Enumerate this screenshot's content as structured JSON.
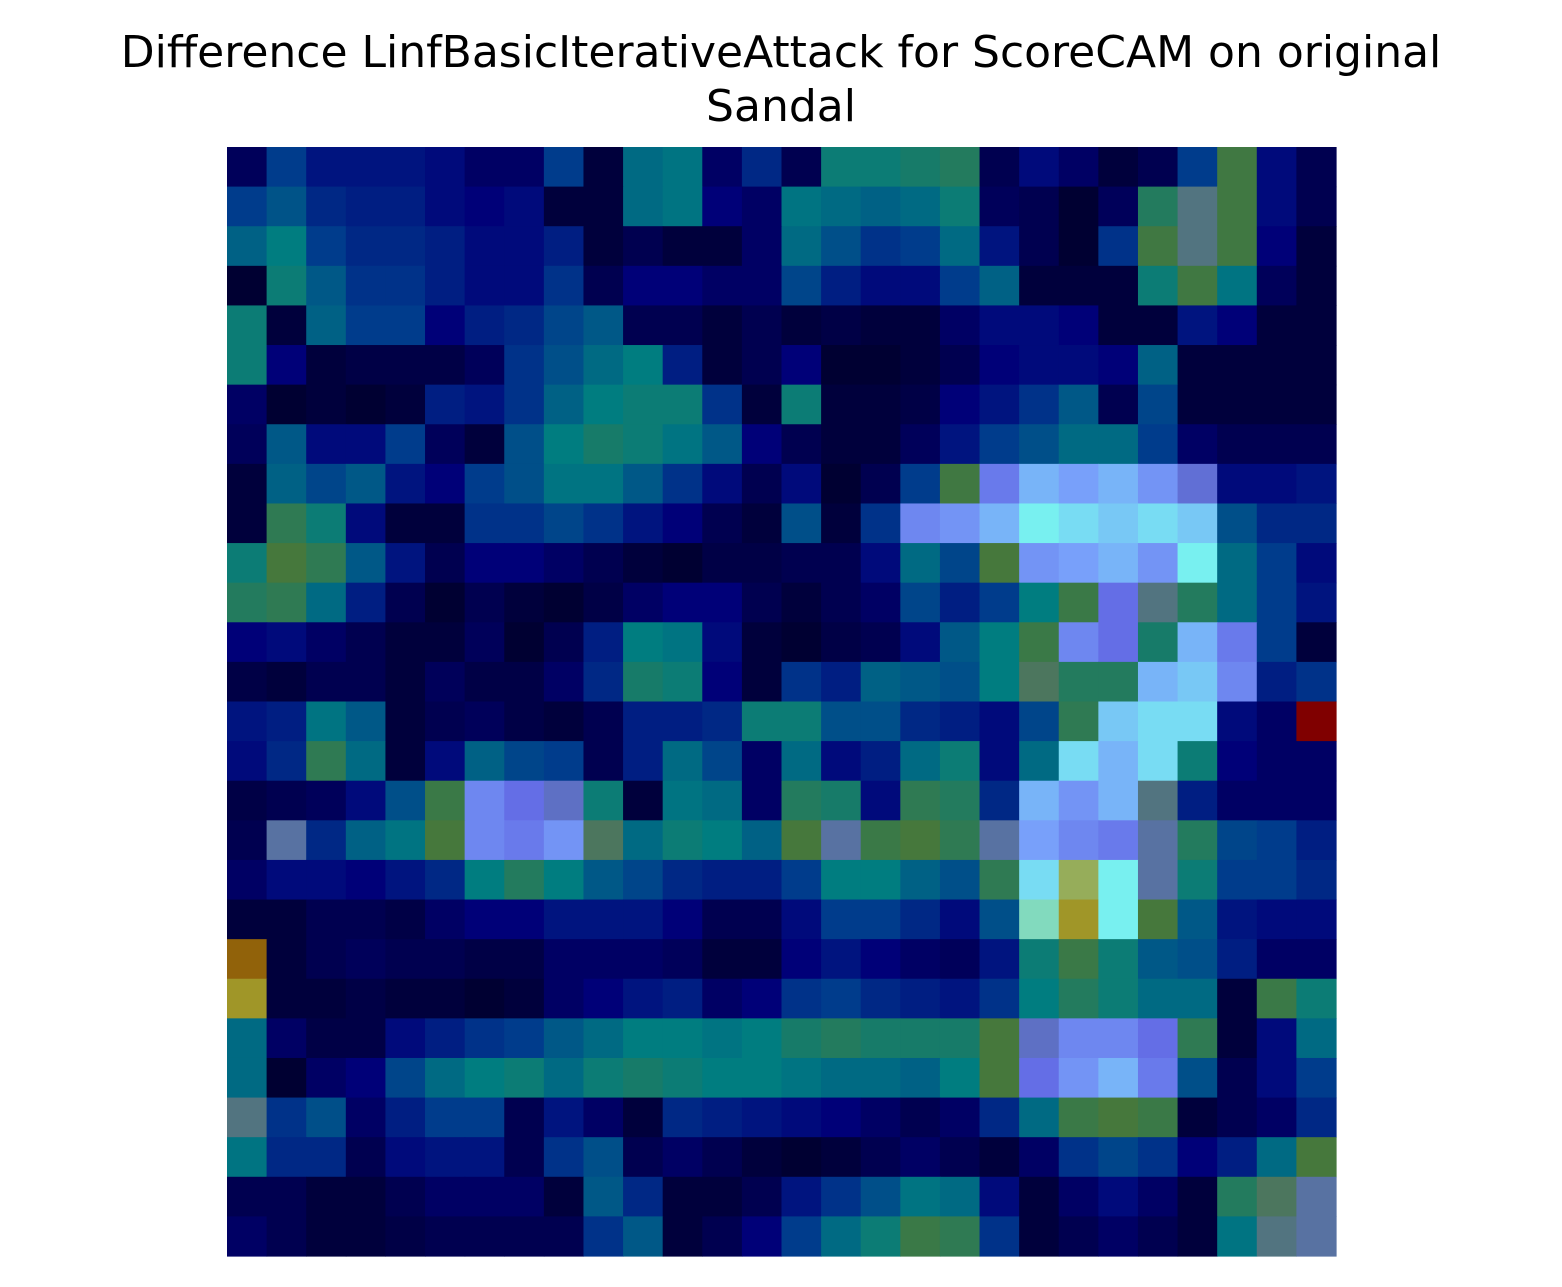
{
  "title_line1": "Difference LinfBasicIterativeAttack for ScoreCAM on original",
  "title_line2": "Sandal",
  "chart_data": {
    "type": "heatmap",
    "title": "Difference LinfBasicIterativeAttack for ScoreCAM on original Sandal",
    "axes_visible": false,
    "grid": false,
    "rows": 28,
    "cols": 28,
    "colormap": "jet-like overlay on image",
    "note_values": "estimated normalized intensity 0-1, read from color",
    "values": [
      [
        0.05,
        0.2,
        0.12,
        0.12,
        0.12,
        0.1,
        0.06,
        0.06,
        0.2,
        0.02,
        0.3,
        0.32,
        0.06,
        0.16,
        0.04,
        0.36,
        0.36,
        0.38,
        0.4,
        0.04,
        0.1,
        0.06,
        0.02,
        0.04,
        0.2,
        0.45,
        0.1,
        0.04
      ],
      [
        0.2,
        0.25,
        0.16,
        0.14,
        0.14,
        0.1,
        0.08,
        0.1,
        0.02,
        0.02,
        0.3,
        0.32,
        0.08,
        0.06,
        0.32,
        0.3,
        0.28,
        0.3,
        0.36,
        0.05,
        0.04,
        0.01,
        0.05,
        0.4,
        0.5,
        0.45,
        0.1,
        0.04
      ],
      [
        0.28,
        0.34,
        0.2,
        0.16,
        0.16,
        0.14,
        0.1,
        0.1,
        0.14,
        0.02,
        0.04,
        0.02,
        0.02,
        0.06,
        0.3,
        0.24,
        0.18,
        0.2,
        0.3,
        0.12,
        0.04,
        0.01,
        0.18,
        0.45,
        0.5,
        0.45,
        0.08,
        0.02
      ],
      [
        0.01,
        0.36,
        0.26,
        0.18,
        0.18,
        0.14,
        0.1,
        0.1,
        0.18,
        0.04,
        0.08,
        0.08,
        0.06,
        0.06,
        0.22,
        0.14,
        0.1,
        0.1,
        0.2,
        0.28,
        0.02,
        0.02,
        0.02,
        0.36,
        0.45,
        0.32,
        0.05,
        0.02
      ],
      [
        0.36,
        0.02,
        0.28,
        0.2,
        0.2,
        0.08,
        0.14,
        0.16,
        0.22,
        0.26,
        0.04,
        0.04,
        0.02,
        0.04,
        0.02,
        0.03,
        0.02,
        0.02,
        0.06,
        0.1,
        0.1,
        0.08,
        0.02,
        0.02,
        0.12,
        0.08,
        0.02,
        0.02
      ],
      [
        0.36,
        0.08,
        0.02,
        0.03,
        0.03,
        0.03,
        0.05,
        0.18,
        0.24,
        0.3,
        0.34,
        0.14,
        0.02,
        0.04,
        0.08,
        0.01,
        0.01,
        0.02,
        0.04,
        0.08,
        0.1,
        0.1,
        0.08,
        0.28,
        0.02,
        0.02,
        0.02,
        0.02
      ],
      [
        0.06,
        0.01,
        0.02,
        0.01,
        0.02,
        0.14,
        0.12,
        0.18,
        0.28,
        0.34,
        0.36,
        0.36,
        0.18,
        0.02,
        0.36,
        0.02,
        0.02,
        0.03,
        0.08,
        0.12,
        0.18,
        0.26,
        0.04,
        0.22,
        0.02,
        0.02,
        0.02,
        0.02
      ],
      [
        0.05,
        0.26,
        0.1,
        0.1,
        0.2,
        0.05,
        0.02,
        0.24,
        0.34,
        0.38,
        0.36,
        0.32,
        0.26,
        0.08,
        0.04,
        0.02,
        0.02,
        0.05,
        0.12,
        0.2,
        0.24,
        0.3,
        0.3,
        0.2,
        0.06,
        0.04,
        0.04,
        0.04
      ],
      [
        0.02,
        0.28,
        0.22,
        0.26,
        0.12,
        0.08,
        0.2,
        0.24,
        0.32,
        0.32,
        0.26,
        0.18,
        0.1,
        0.04,
        0.1,
        0.01,
        0.04,
        0.2,
        0.45,
        0.58,
        0.66,
        0.64,
        0.66,
        0.62,
        0.55,
        0.1,
        0.1,
        0.12
      ],
      [
        0.02,
        0.42,
        0.36,
        0.1,
        0.02,
        0.02,
        0.18,
        0.18,
        0.22,
        0.18,
        0.12,
        0.08,
        0.04,
        0.02,
        0.24,
        0.02,
        0.18,
        0.6,
        0.62,
        0.66,
        0.72,
        0.7,
        0.68,
        0.7,
        0.68,
        0.24,
        0.16,
        0.16
      ],
      [
        0.36,
        0.46,
        0.42,
        0.26,
        0.12,
        0.04,
        0.08,
        0.08,
        0.06,
        0.04,
        0.02,
        0.01,
        0.03,
        0.03,
        0.04,
        0.04,
        0.1,
        0.3,
        0.22,
        0.46,
        0.62,
        0.64,
        0.66,
        0.62,
        0.72,
        0.3,
        0.2,
        0.1
      ],
      [
        0.4,
        0.42,
        0.3,
        0.14,
        0.04,
        0.01,
        0.04,
        0.02,
        0.01,
        0.03,
        0.06,
        0.08,
        0.08,
        0.04,
        0.02,
        0.04,
        0.06,
        0.22,
        0.14,
        0.2,
        0.34,
        0.44,
        0.56,
        0.5,
        0.4,
        0.3,
        0.2,
        0.12
      ],
      [
        0.08,
        0.1,
        0.06,
        0.04,
        0.02,
        0.02,
        0.05,
        0.01,
        0.04,
        0.14,
        0.34,
        0.32,
        0.1,
        0.02,
        0.01,
        0.03,
        0.04,
        0.1,
        0.26,
        0.34,
        0.44,
        0.6,
        0.56,
        0.38,
        0.66,
        0.58,
        0.2,
        0.02
      ],
      [
        0.03,
        0.02,
        0.04,
        0.04,
        0.02,
        0.05,
        0.03,
        0.03,
        0.06,
        0.16,
        0.38,
        0.36,
        0.08,
        0.02,
        0.18,
        0.14,
        0.28,
        0.26,
        0.24,
        0.34,
        0.48,
        0.4,
        0.4,
        0.66,
        0.68,
        0.6,
        0.14,
        0.18
      ],
      [
        0.12,
        0.14,
        0.32,
        0.26,
        0.02,
        0.04,
        0.05,
        0.03,
        0.02,
        0.04,
        0.14,
        0.14,
        0.16,
        0.36,
        0.36,
        0.24,
        0.24,
        0.16,
        0.14,
        0.1,
        0.22,
        0.42,
        0.68,
        0.7,
        0.7,
        0.1,
        0.06,
        1.0
      ],
      [
        0.1,
        0.16,
        0.42,
        0.3,
        0.02,
        0.1,
        0.28,
        0.22,
        0.2,
        0.04,
        0.14,
        0.3,
        0.22,
        0.06,
        0.3,
        0.1,
        0.14,
        0.3,
        0.36,
        0.1,
        0.3,
        0.7,
        0.66,
        0.7,
        0.36,
        0.08,
        0.06,
        0.06
      ],
      [
        0.03,
        0.04,
        0.05,
        0.1,
        0.24,
        0.44,
        0.6,
        0.56,
        0.54,
        0.36,
        0.02,
        0.32,
        0.3,
        0.06,
        0.4,
        0.38,
        0.1,
        0.42,
        0.4,
        0.16,
        0.66,
        0.62,
        0.66,
        0.5,
        0.14,
        0.06,
        0.06,
        0.06
      ],
      [
        0.04,
        0.52,
        0.16,
        0.28,
        0.32,
        0.46,
        0.6,
        0.58,
        0.62,
        0.48,
        0.3,
        0.36,
        0.34,
        0.28,
        0.46,
        0.52,
        0.44,
        0.46,
        0.42,
        0.52,
        0.64,
        0.6,
        0.58,
        0.52,
        0.4,
        0.22,
        0.2,
        0.14
      ],
      [
        0.06,
        0.1,
        0.1,
        0.08,
        0.12,
        0.16,
        0.34,
        0.4,
        0.34,
        0.26,
        0.22,
        0.16,
        0.14,
        0.14,
        0.2,
        0.34,
        0.34,
        0.28,
        0.24,
        0.42,
        0.7,
        0.78,
        0.72,
        0.52,
        0.36,
        0.2,
        0.2,
        0.16
      ],
      [
        0.02,
        0.02,
        0.04,
        0.04,
        0.03,
        0.06,
        0.08,
        0.08,
        0.12,
        0.12,
        0.12,
        0.08,
        0.04,
        0.04,
        0.1,
        0.2,
        0.2,
        0.16,
        0.1,
        0.24,
        0.74,
        0.8,
        0.72,
        0.46,
        0.26,
        0.12,
        0.1,
        0.1
      ],
      [
        0.86,
        0.02,
        0.04,
        0.05,
        0.04,
        0.04,
        0.03,
        0.03,
        0.06,
        0.06,
        0.06,
        0.05,
        0.02,
        0.02,
        0.08,
        0.12,
        0.08,
        0.06,
        0.05,
        0.12,
        0.36,
        0.44,
        0.36,
        0.26,
        0.24,
        0.14,
        0.06,
        0.06
      ],
      [
        0.8,
        0.02,
        0.02,
        0.03,
        0.02,
        0.02,
        0.01,
        0.02,
        0.06,
        0.08,
        0.12,
        0.14,
        0.06,
        0.08,
        0.18,
        0.2,
        0.16,
        0.14,
        0.12,
        0.18,
        0.34,
        0.4,
        0.36,
        0.3,
        0.3,
        0.02,
        0.44,
        0.36
      ],
      [
        0.3,
        0.06,
        0.03,
        0.03,
        0.1,
        0.14,
        0.18,
        0.2,
        0.26,
        0.3,
        0.34,
        0.34,
        0.32,
        0.34,
        0.38,
        0.4,
        0.38,
        0.38,
        0.38,
        0.46,
        0.54,
        0.6,
        0.6,
        0.56,
        0.42,
        0.02,
        0.1,
        0.3
      ],
      [
        0.3,
        0.01,
        0.06,
        0.08,
        0.22,
        0.3,
        0.34,
        0.36,
        0.3,
        0.36,
        0.38,
        0.36,
        0.34,
        0.34,
        0.32,
        0.3,
        0.3,
        0.28,
        0.34,
        0.46,
        0.56,
        0.62,
        0.66,
        0.58,
        0.24,
        0.04,
        0.1,
        0.2
      ],
      [
        0.5,
        0.18,
        0.24,
        0.06,
        0.14,
        0.2,
        0.2,
        0.04,
        0.12,
        0.06,
        0.02,
        0.16,
        0.14,
        0.12,
        0.1,
        0.08,
        0.06,
        0.04,
        0.06,
        0.16,
        0.3,
        0.44,
        0.46,
        0.44,
        0.02,
        0.04,
        0.06,
        0.16
      ],
      [
        0.32,
        0.16,
        0.16,
        0.04,
        0.1,
        0.12,
        0.12,
        0.04,
        0.18,
        0.24,
        0.04,
        0.06,
        0.04,
        0.02,
        0.01,
        0.02,
        0.04,
        0.06,
        0.04,
        0.02,
        0.06,
        0.18,
        0.22,
        0.18,
        0.08,
        0.14,
        0.3,
        0.46
      ],
      [
        0.04,
        0.04,
        0.02,
        0.02,
        0.04,
        0.06,
        0.06,
        0.06,
        0.02,
        0.26,
        0.16,
        0.02,
        0.02,
        0.04,
        0.12,
        0.18,
        0.24,
        0.32,
        0.3,
        0.1,
        0.02,
        0.06,
        0.1,
        0.06,
        0.02,
        0.4,
        0.48,
        0.52
      ],
      [
        0.06,
        0.04,
        0.02,
        0.02,
        0.03,
        0.04,
        0.04,
        0.04,
        0.04,
        0.18,
        0.26,
        0.02,
        0.04,
        0.08,
        0.2,
        0.3,
        0.36,
        0.44,
        0.42,
        0.18,
        0.02,
        0.04,
        0.06,
        0.04,
        0.02,
        0.32,
        0.5,
        0.52
      ]
    ]
  }
}
